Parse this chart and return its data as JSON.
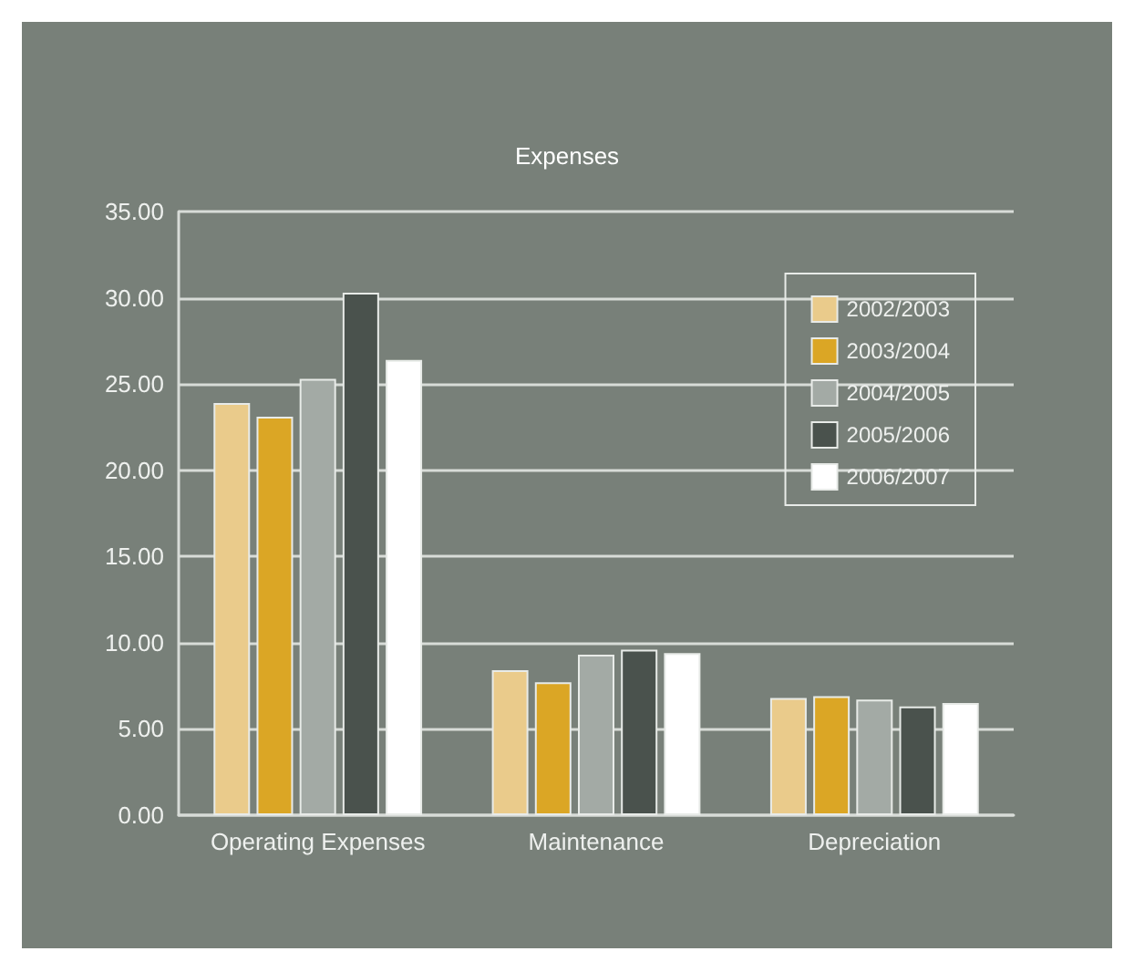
{
  "chart_data": {
    "type": "bar",
    "title": "Expenses",
    "categories": [
      "Operating Expenses",
      "Maintenance",
      "Depreciation"
    ],
    "series": [
      {
        "name": "2002/2003",
        "color": "#eacb8b",
        "values": [
          23.9,
          8.4,
          6.8
        ]
      },
      {
        "name": "2003/2004",
        "color": "#dba625",
        "values": [
          23.1,
          7.7,
          6.9
        ]
      },
      {
        "name": "2004/2005",
        "color": "#a3aaa5",
        "values": [
          25.3,
          9.3,
          6.7
        ]
      },
      {
        "name": "2005/2006",
        "color": "#4a524d",
        "values": [
          30.3,
          9.6,
          6.3
        ]
      },
      {
        "name": "2006/2007",
        "color": "#ffffff",
        "values": [
          26.4,
          9.4,
          6.5
        ]
      }
    ],
    "ylim": [
      0,
      35
    ],
    "yticks": [
      {
        "value": 0,
        "label": "0.00"
      },
      {
        "value": 5,
        "label": "5.00"
      },
      {
        "value": 10,
        "label": "10.00"
      },
      {
        "value": 15,
        "label": "15.00"
      },
      {
        "value": 20,
        "label": "20.00"
      },
      {
        "value": 25,
        "label": "25.00"
      },
      {
        "value": 30,
        "label": "30.00"
      },
      {
        "value": 35,
        "label": "35.00"
      }
    ],
    "grid": "y",
    "legend": "top right"
  }
}
